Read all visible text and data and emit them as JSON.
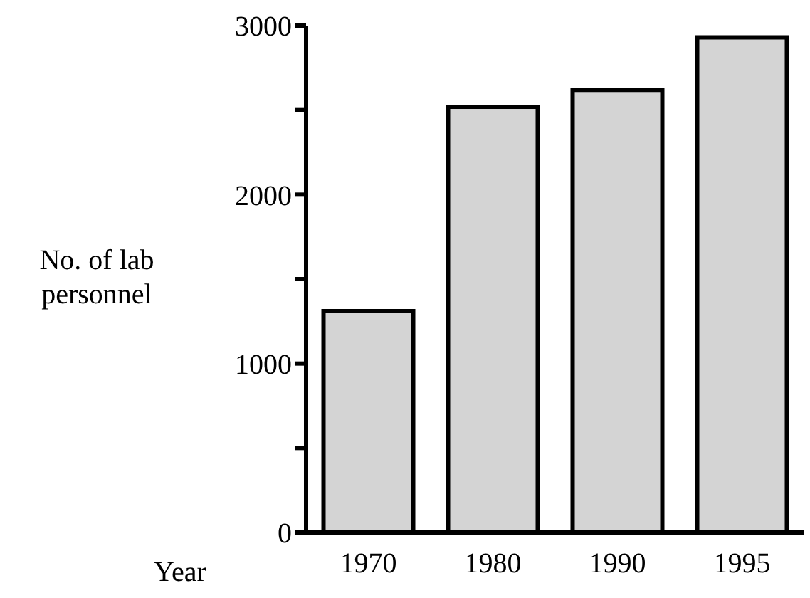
{
  "chart_data": {
    "type": "bar",
    "xlabel": "Year",
    "ylabel": "No. of lab personnel",
    "categories": [
      "1970",
      "1980",
      "1990",
      "1995"
    ],
    "values": [
      1310,
      2520,
      2620,
      2930
    ],
    "color": "#d4d4d4",
    "ylim": [
      0,
      3000
    ],
    "yticks": [
      0,
      {
        "value": 500,
        "label": null
      },
      1000,
      {
        "value": 1500,
        "label": null
      },
      2000,
      {
        "value": 2500,
        "label": null
      },
      3000
    ],
    "grid": false,
    "legend": false
  }
}
